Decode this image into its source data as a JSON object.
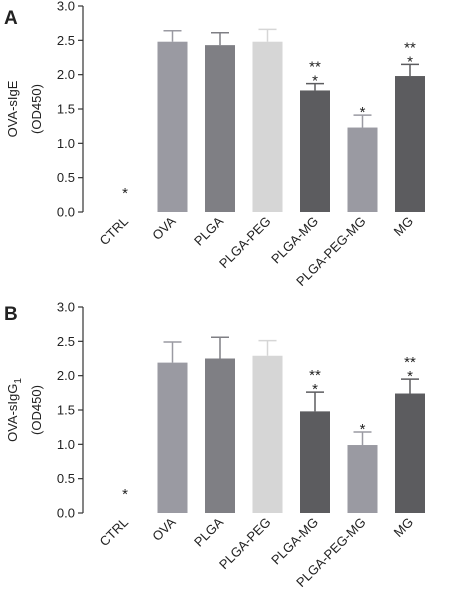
{
  "chart_data": [
    {
      "type": "bar",
      "panel_label": "A",
      "ylabel_line1": "OVA-sIgE",
      "ylabel_line2": "(OD450)",
      "ylim": [
        0,
        3.0
      ],
      "yticks": [
        "0.0",
        "0.5",
        "1.0",
        "1.5",
        "2.0",
        "2.5",
        "3.0"
      ],
      "categories": [
        "CTRL",
        "OVA",
        "PLGA",
        "PLGA-PEG",
        "PLGA-MG",
        "PLGA-PEG-MG",
        "MG"
      ],
      "values": [
        0,
        2.48,
        2.43,
        2.48,
        1.77,
        1.23,
        1.98
      ],
      "errors": [
        0,
        0.16,
        0.18,
        0.18,
        0.1,
        0.18,
        0.17
      ],
      "annotations": [
        [
          "*"
        ],
        [],
        [],
        [],
        [
          "*",
          "**"
        ],
        [
          "*"
        ],
        [
          "*",
          "**"
        ]
      ],
      "colors": [
        "#9a9aa2",
        "#9a9aa2",
        "#7f7f84",
        "#d6d6d6",
        "#5c5c5f",
        "#9a9aa2",
        "#5c5c5f"
      ]
    },
    {
      "type": "bar",
      "panel_label": "B",
      "ylabel_line1": "OVA-sIgG",
      "ylabel_sub": "1",
      "ylabel_line2": "(OD450)",
      "ylim": [
        0,
        3.0
      ],
      "yticks": [
        "0.0",
        "0.5",
        "1.0",
        "1.5",
        "2.0",
        "2.5",
        "3.0"
      ],
      "categories": [
        "CTRL",
        "OVA",
        "PLGA",
        "PLGA-PEG",
        "PLGA-MG",
        "PLGA-PEG-MG",
        "MG"
      ],
      "values": [
        0,
        2.19,
        2.25,
        2.29,
        1.48,
        0.99,
        1.74
      ],
      "errors": [
        0,
        0.3,
        0.31,
        0.22,
        0.28,
        0.19,
        0.21
      ],
      "annotations": [
        [
          "*"
        ],
        [],
        [],
        [],
        [
          "*",
          "**"
        ],
        [
          "*"
        ],
        [
          "*",
          "**"
        ]
      ],
      "colors": [
        "#9a9aa2",
        "#9a9aa2",
        "#7f7f84",
        "#d6d6d6",
        "#5c5c5f",
        "#9a9aa2",
        "#5c5c5f"
      ]
    }
  ]
}
